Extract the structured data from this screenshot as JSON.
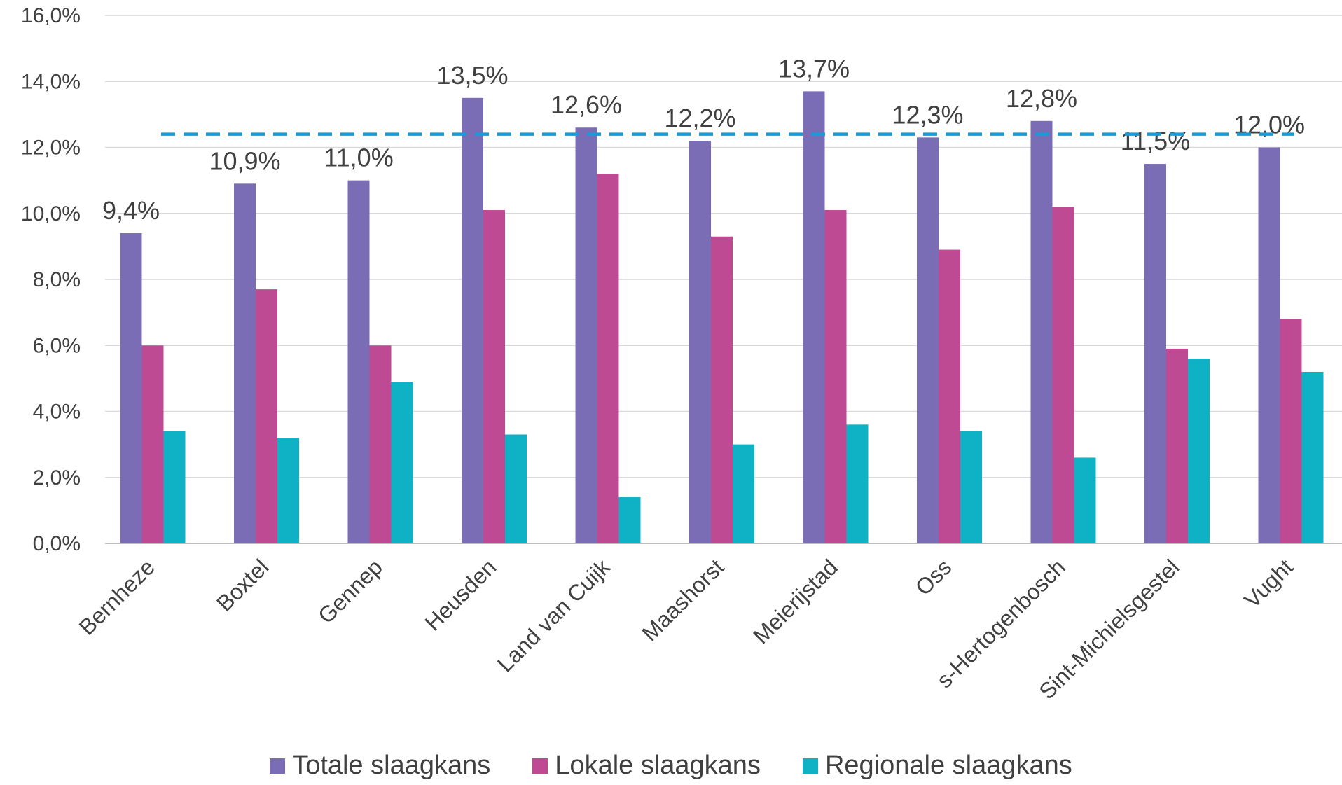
{
  "chart_data": {
    "type": "bar",
    "title": "",
    "xlabel": "",
    "ylabel": "",
    "ylim": [
      0,
      16
    ],
    "y_ticks": [
      "0,0%",
      "2,0%",
      "4,0%",
      "6,0%",
      "8,0%",
      "10,0%",
      "12,0%",
      "14,0%",
      "16,0%"
    ],
    "grid": true,
    "legend_position": "bottom",
    "categories": [
      "Bernheze",
      "Boxtel",
      "Gennep",
      "Heusden",
      "Land van Cuijk",
      "Maashorst",
      "Meierijstad",
      "Oss",
      "s-Hertogenbosch",
      "Sint-Michielsgestel",
      "Vught"
    ],
    "series": [
      {
        "name": "Totale slaagkans",
        "color": "#7b6db5",
        "values": [
          9.4,
          10.9,
          11.0,
          13.5,
          12.6,
          12.2,
          13.7,
          12.3,
          12.8,
          11.5,
          12.0
        ]
      },
      {
        "name": "Lokale slaagkans",
        "color": "#bd4a93",
        "values": [
          6.0,
          7.7,
          6.0,
          10.1,
          11.2,
          9.3,
          10.1,
          8.9,
          10.2,
          5.9,
          6.8
        ]
      },
      {
        "name": "Regionale slaagkans",
        "color": "#0fb2c4",
        "values": [
          3.4,
          3.2,
          4.9,
          3.3,
          1.4,
          3.0,
          3.6,
          3.4,
          2.6,
          5.6,
          5.2
        ]
      }
    ],
    "data_labels": [
      "9,4%",
      "10,9%",
      "11,0%",
      "13,5%",
      "12,6%",
      "12,2%",
      "13,7%",
      "12,3%",
      "12,8%",
      "11,5%",
      "12,0%"
    ],
    "reference_line": {
      "value": 12.4,
      "style": "dashed",
      "color": "#1a9ad6"
    }
  },
  "legend": {
    "items": [
      {
        "label": "Totale slaagkans",
        "color": "#7b6db5"
      },
      {
        "label": "Lokale slaagkans",
        "color": "#bd4a93"
      },
      {
        "label": "Regionale slaagkans",
        "color": "#0fb2c4"
      }
    ]
  }
}
